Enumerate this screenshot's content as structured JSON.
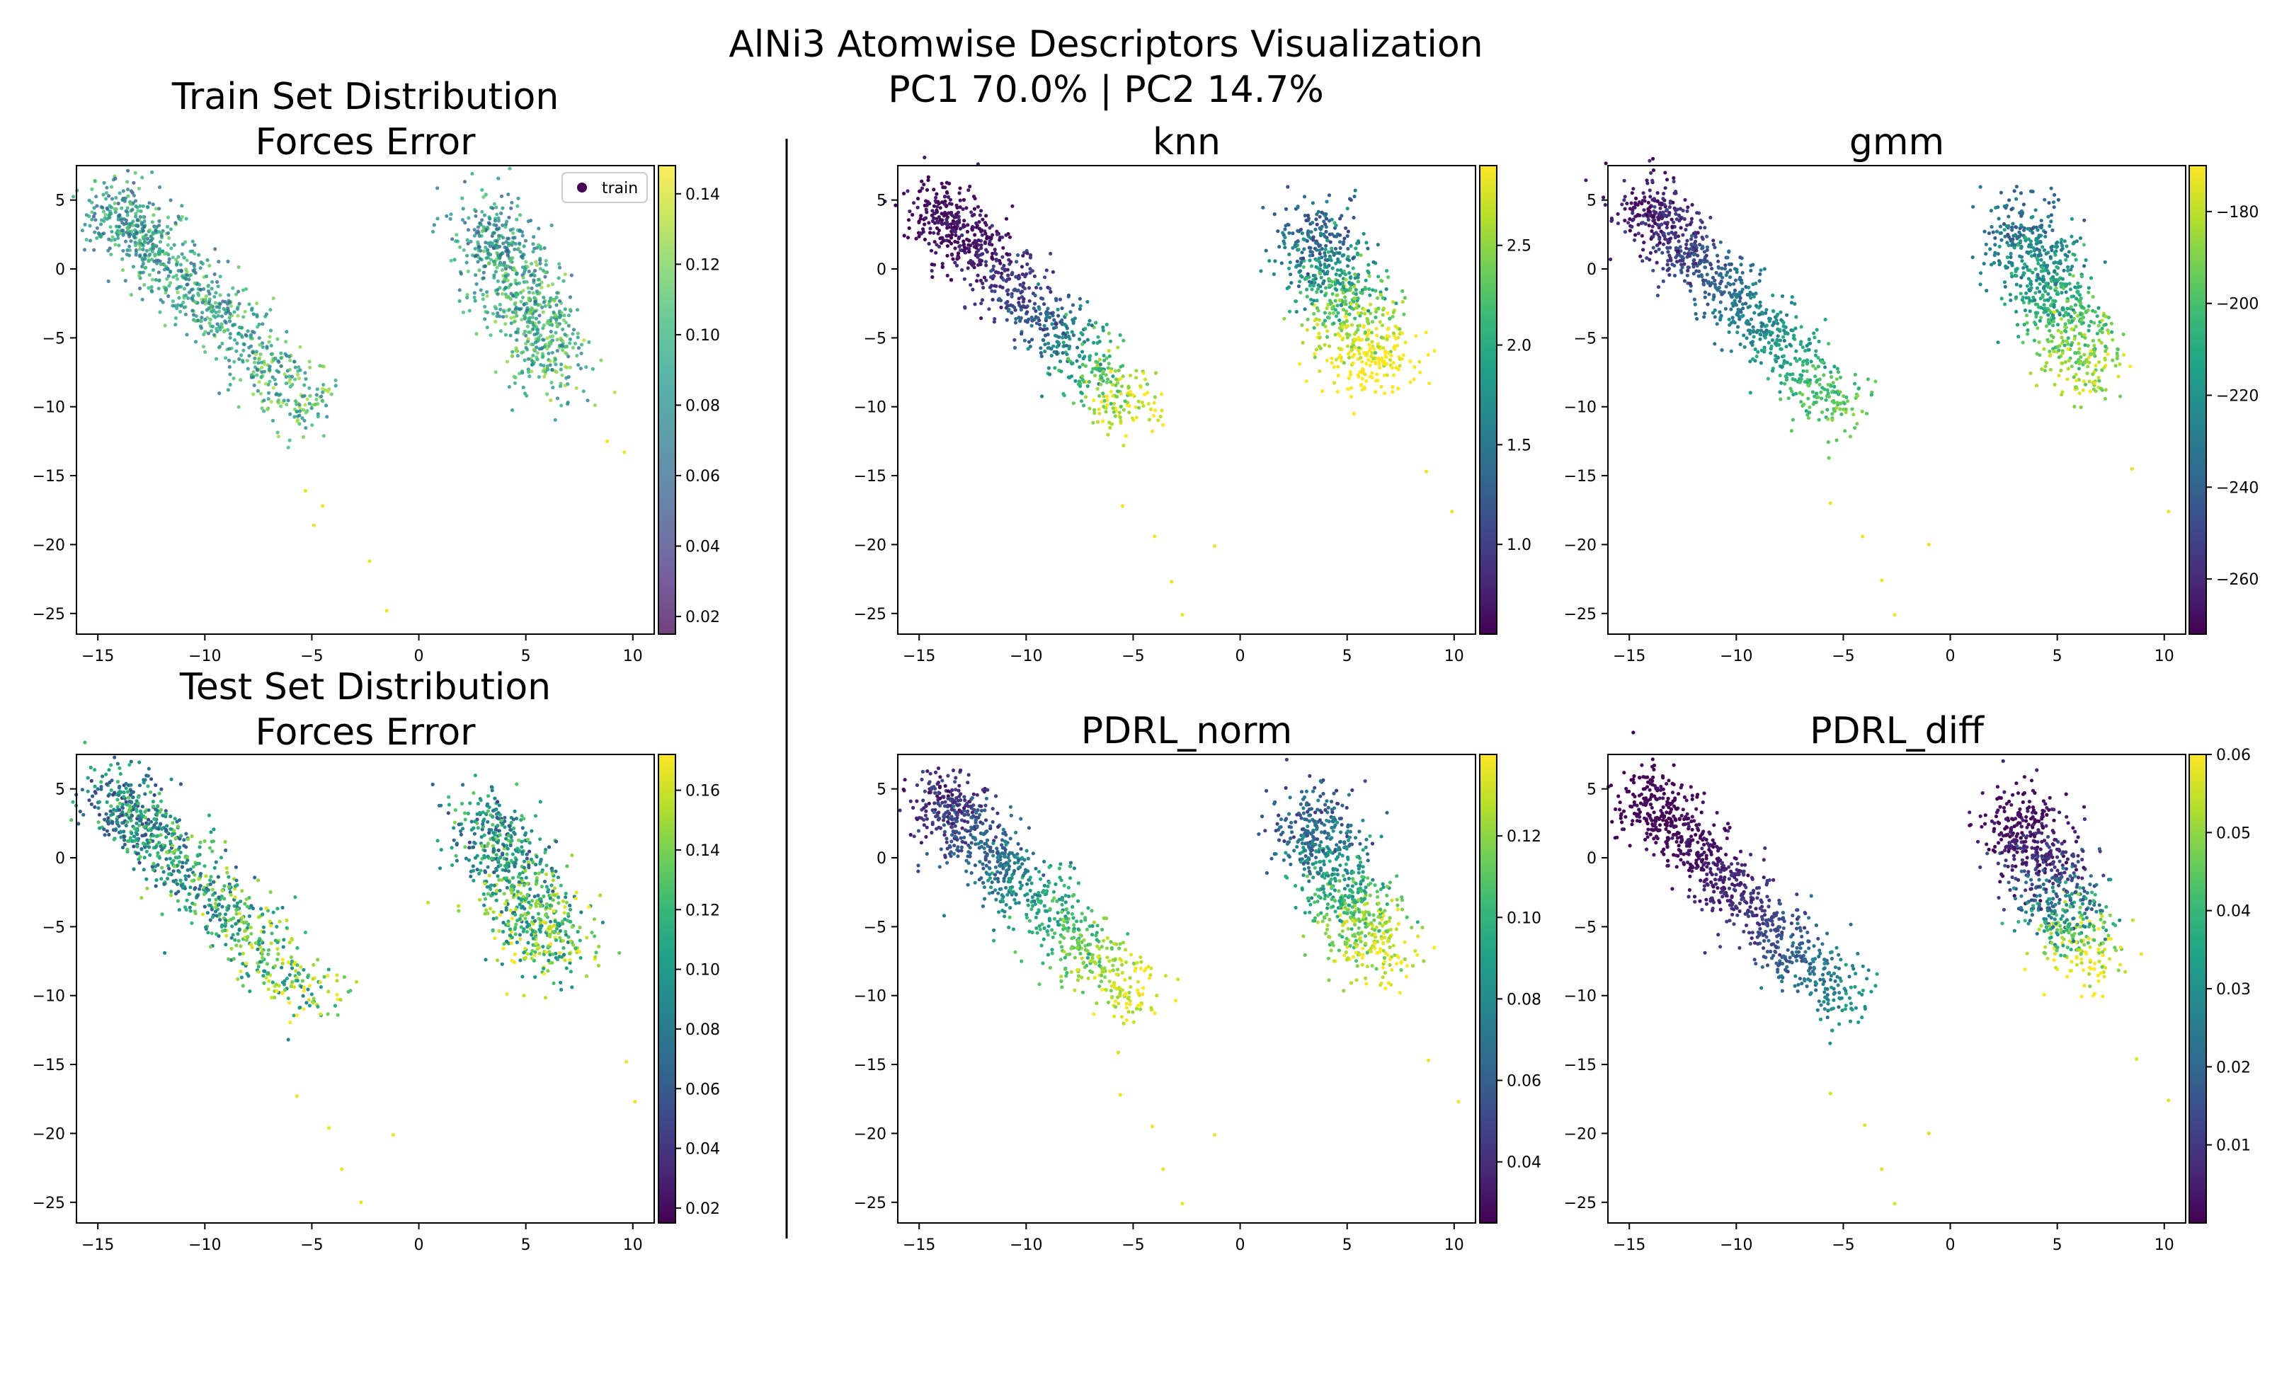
{
  "figure": {
    "title_line1": "AlNi3 Atomwise Descriptors Visualization",
    "title_line2": "PC1 70.0% | PC2 14.7%"
  },
  "colors": {
    "viridis": [
      "#440154",
      "#482878",
      "#3e4989",
      "#31688e",
      "#26828e",
      "#1f9e89",
      "#35b779",
      "#6ece58",
      "#b5de2b",
      "#fde725"
    ],
    "axis": "#000000",
    "divider": "#000000"
  },
  "chart_data": [
    {
      "id": "train",
      "type": "scatter",
      "title": "Train Set Distribution\nForces Error",
      "colorbar": {
        "min": 0.015,
        "max": 0.148,
        "ticks": [
          0.02,
          0.04,
          0.06,
          0.08,
          0.1,
          0.12,
          0.14
        ],
        "tick_labels": [
          "0.02",
          "0.04",
          "0.06",
          "0.08",
          "0.10",
          "0.12",
          "0.14"
        ],
        "faded": true
      },
      "legend": {
        "label": "train",
        "placement": "top-right"
      },
      "xlim": [
        -16,
        11
      ],
      "ylim": [
        -26.5,
        7.5
      ],
      "xticks": [
        -15,
        -10,
        -5,
        0,
        5,
        10
      ],
      "yticks": [
        -25,
        -20,
        -15,
        -10,
        -5,
        0,
        5
      ],
      "color_mode": "random-mid",
      "points_per_cluster": [
        850,
        700
      ],
      "outlier_x": [
        -1.5,
        -2.3,
        -4.9,
        -4.5,
        -5.3,
        8.8,
        9.6
      ],
      "outlier_y": [
        -24.8,
        -21.2,
        -18.6,
        -17.2,
        -16.1,
        -12.5,
        -13.3
      ]
    },
    {
      "id": "test",
      "type": "scatter",
      "title": "Test Set Distribution\nForces Error",
      "colorbar": {
        "min": 0.015,
        "max": 0.172,
        "ticks": [
          0.02,
          0.04,
          0.06,
          0.08,
          0.1,
          0.12,
          0.14,
          0.16
        ],
        "tick_labels": [
          "0.02",
          "0.04",
          "0.06",
          "0.08",
          "0.10",
          "0.12",
          "0.14",
          "0.16"
        ],
        "faded": false
      },
      "xlim": [
        -16,
        11
      ],
      "ylim": [
        -26.5,
        7.5
      ],
      "xticks": [
        -15,
        -10,
        -5,
        0,
        5,
        10
      ],
      "yticks": [
        -25,
        -20,
        -15,
        -10,
        -5,
        0,
        5
      ],
      "color_mode": "random-tail",
      "points_per_cluster": [
        850,
        700
      ],
      "outlier_x": [
        -1.2,
        -2.7,
        -3.6,
        -4.2,
        -5.7,
        9.7,
        10.1
      ],
      "outlier_y": [
        -20.1,
        -25.0,
        -22.6,
        -19.6,
        -17.3,
        -14.8,
        -17.7
      ]
    },
    {
      "id": "knn",
      "type": "scatter",
      "title": "knn",
      "colorbar": {
        "min": 0.55,
        "max": 2.9,
        "ticks": [
          1.0,
          1.5,
          2.0,
          2.5
        ],
        "tick_labels": [
          "1.0",
          "1.5",
          "2.0",
          "2.5"
        ],
        "faded": false
      },
      "xlim": [
        -16,
        11
      ],
      "ylim": [
        -26.5,
        7.5
      ],
      "xticks": [
        -15,
        -10,
        -5,
        0,
        5,
        10
      ],
      "yticks": [
        -25,
        -20,
        -15,
        -10,
        -5,
        0,
        5
      ],
      "color_mode": "gradient-strong",
      "points_per_cluster": [
        850,
        700
      ],
      "outlier_x": [
        -1.2,
        -2.7,
        -3.2,
        -4.0,
        -5.5,
        9.9,
        8.7
      ],
      "outlier_y": [
        -20.1,
        -25.1,
        -22.7,
        -19.4,
        -17.2,
        -17.6,
        -14.7
      ]
    },
    {
      "id": "gmm",
      "type": "scatter",
      "title": "gmm",
      "colorbar": {
        "min": -272,
        "max": -170,
        "ticks": [
          -260,
          -240,
          -220,
          -200,
          -180
        ],
        "tick_labels": [
          "−260",
          "−240",
          "−220",
          "−200",
          "−180"
        ],
        "faded": false
      },
      "xlim": [
        -16,
        11
      ],
      "ylim": [
        -26.5,
        7.5
      ],
      "xticks": [
        -15,
        -10,
        -5,
        0,
        5,
        10
      ],
      "yticks": [
        -25,
        -20,
        -15,
        -10,
        -5,
        0,
        5
      ],
      "color_mode": "gradient-gmm",
      "points_per_cluster": [
        850,
        700
      ],
      "outlier_x": [
        -1.0,
        -2.6,
        -3.2,
        -4.1,
        -5.6,
        10.2,
        8.5
      ],
      "outlier_y": [
        -20.0,
        -25.1,
        -22.6,
        -19.4,
        -17.0,
        -17.6,
        -14.5
      ]
    },
    {
      "id": "pdrl_norm",
      "type": "scatter",
      "title": "PDRL_norm",
      "colorbar": {
        "min": 0.025,
        "max": 0.14,
        "ticks": [
          0.04,
          0.06,
          0.08,
          0.1,
          0.12
        ],
        "tick_labels": [
          "0.04",
          "0.06",
          "0.08",
          "0.10",
          "0.12"
        ],
        "faded": false
      },
      "xlim": [
        -16,
        11
      ],
      "ylim": [
        -26.5,
        7.5
      ],
      "xticks": [
        -15,
        -10,
        -5,
        0,
        5,
        10
      ],
      "yticks": [
        -25,
        -20,
        -15,
        -10,
        -5,
        0,
        5
      ],
      "color_mode": "gradient-mid",
      "points_per_cluster": [
        850,
        700
      ],
      "outlier_x": [
        -1.2,
        -2.7,
        -3.6,
        -4.1,
        -5.6,
        10.2,
        8.8
      ],
      "outlier_y": [
        -20.1,
        -25.1,
        -22.6,
        -19.5,
        -17.2,
        -17.7,
        -14.7
      ]
    },
    {
      "id": "pdrl_diff",
      "type": "scatter",
      "title": "PDRL_diff",
      "colorbar": {
        "min": 0.0,
        "max": 0.06,
        "ticks": [
          0.01,
          0.02,
          0.03,
          0.04,
          0.05,
          0.06
        ],
        "tick_labels": [
          "0.01",
          "0.02",
          "0.03",
          "0.04",
          "0.05",
          "0.06"
        ],
        "faded": false
      },
      "xlim": [
        -16,
        11
      ],
      "ylim": [
        -26.5,
        7.5
      ],
      "xticks": [
        -15,
        -10,
        -5,
        0,
        5,
        10
      ],
      "yticks": [
        -25,
        -20,
        -15,
        -10,
        -5,
        0,
        5
      ],
      "color_mode": "gradient-diff",
      "points_per_cluster": [
        850,
        700
      ],
      "outlier_x": [
        -1.0,
        -2.6,
        -3.2,
        -4.0,
        -5.6,
        10.2,
        8.7
      ],
      "outlier_y": [
        -20.0,
        -25.1,
        -22.6,
        -19.4,
        -17.1,
        -17.6,
        -14.6
      ]
    }
  ]
}
